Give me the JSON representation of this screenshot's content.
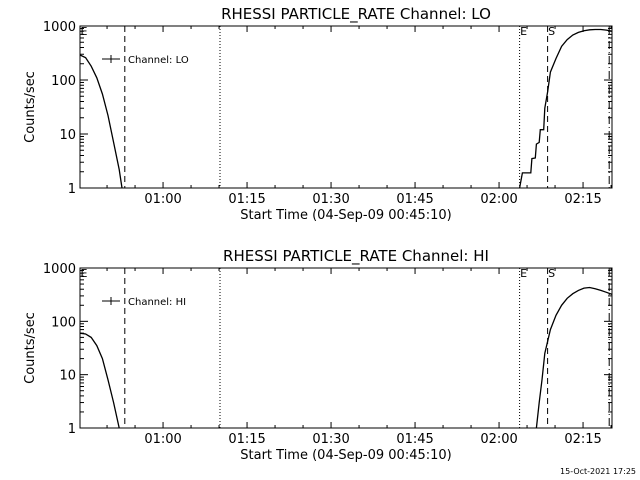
{
  "footer_timestamp": "15-Oct-2021 17:25",
  "chart_data": [
    {
      "type": "line",
      "title": "RHESSI PARTICLE_RATE Channel: LO",
      "xlabel": "Start Time (04-Sep-09 00:45:10)",
      "ylabel": "Counts/sec",
      "y_scale": "log",
      "ylim": [
        1,
        1000
      ],
      "x_unit": "minutes since 00:45:10",
      "xlim": [
        0,
        95
      ],
      "x_ticks": [
        {
          "label": "01:00",
          "value": 14.83
        },
        {
          "label": "01:15",
          "value": 29.83
        },
        {
          "label": "01:30",
          "value": 44.83
        },
        {
          "label": "01:45",
          "value": 59.83
        },
        {
          "label": "02:00",
          "value": 74.83
        },
        {
          "label": "02:15",
          "value": 89.83
        }
      ],
      "y_ticks": [
        {
          "label": "1",
          "value": 1
        },
        {
          "label": "10",
          "value": 10
        },
        {
          "label": "100",
          "value": 100
        },
        {
          "label": "1000",
          "value": 1000
        }
      ],
      "legend": {
        "label": "Channel: LO",
        "position": "top-left"
      },
      "series": [
        {
          "name": "Channel: LO",
          "segments": [
            [
              [
                0,
                290
              ],
              [
                1,
                260
              ],
              [
                2,
                180
              ],
              [
                3,
                110
              ],
              [
                4,
                55
              ],
              [
                5,
                22
              ],
              [
                6,
                7
              ],
              [
                7,
                2.2
              ],
              [
                7.5,
                1
              ]
            ],
            [
              [
                78.5,
                1
              ],
              [
                79,
                1.9
              ],
              [
                80.5,
                1.9
              ],
              [
                80.7,
                3.5
              ],
              [
                81.3,
                3.6
              ],
              [
                81.5,
                6.5
              ],
              [
                82,
                7
              ],
              [
                82.2,
                12
              ],
              [
                82.8,
                12
              ],
              [
                83,
                30
              ],
              [
                83.5,
                60
              ],
              [
                84,
                140
              ],
              [
                85,
                250
              ],
              [
                86,
                420
              ],
              [
                87,
                560
              ],
              [
                88,
                680
              ],
              [
                89,
                760
              ],
              [
                90,
                820
              ],
              [
                91,
                850
              ],
              [
                92,
                860
              ],
              [
                93,
                860
              ],
              [
                94,
                840
              ],
              [
                95,
                800
              ]
            ]
          ]
        }
      ],
      "vertical_markers": [
        {
          "label": "E",
          "x": 0,
          "style": "solid"
        },
        {
          "label": "",
          "x": 8,
          "style": "dashed"
        },
        {
          "label": "",
          "x": 25,
          "style": "dotted"
        },
        {
          "label": "E",
          "x": 78.5,
          "style": "dotted"
        },
        {
          "label": "S",
          "x": 83.5,
          "style": "dashed"
        },
        {
          "label": "",
          "x": 94.5,
          "style": "dashdot"
        }
      ]
    },
    {
      "type": "line",
      "title": "RHESSI PARTICLE_RATE Channel: HI",
      "xlabel": "Start Time (04-Sep-09 00:45:10)",
      "ylabel": "Counts/sec",
      "y_scale": "log",
      "ylim": [
        1,
        1000
      ],
      "x_unit": "minutes since 00:45:10",
      "xlim": [
        0,
        95
      ],
      "x_ticks": [
        {
          "label": "01:00",
          "value": 14.83
        },
        {
          "label": "01:15",
          "value": 29.83
        },
        {
          "label": "01:30",
          "value": 44.83
        },
        {
          "label": "01:45",
          "value": 59.83
        },
        {
          "label": "02:00",
          "value": 74.83
        },
        {
          "label": "02:15",
          "value": 89.83
        }
      ],
      "y_ticks": [
        {
          "label": "1",
          "value": 1
        },
        {
          "label": "10",
          "value": 10
        },
        {
          "label": "100",
          "value": 100
        },
        {
          "label": "1000",
          "value": 1000
        }
      ],
      "legend": {
        "label": "Channel: HI",
        "position": "top-left"
      },
      "series": [
        {
          "name": "Channel: HI",
          "segments": [
            [
              [
                0,
                60
              ],
              [
                1,
                58
              ],
              [
                2,
                50
              ],
              [
                3,
                35
              ],
              [
                4,
                20
              ],
              [
                5,
                8
              ],
              [
                6,
                3
              ],
              [
                7,
                1
              ]
            ],
            [
              [
                81.5,
                1
              ],
              [
                82,
                3
              ],
              [
                82.5,
                8
              ],
              [
                83,
                25
              ],
              [
                84,
                70
              ],
              [
                85,
                130
              ],
              [
                86,
                200
              ],
              [
                87,
                270
              ],
              [
                88,
                330
              ],
              [
                89,
                380
              ],
              [
                90,
                420
              ],
              [
                91,
                430
              ],
              [
                92,
                410
              ],
              [
                93,
                380
              ],
              [
                94,
                350
              ],
              [
                95,
                320
              ]
            ]
          ]
        }
      ],
      "vertical_markers": [
        {
          "label": "E",
          "x": 0,
          "style": "solid"
        },
        {
          "label": "",
          "x": 8,
          "style": "dashed"
        },
        {
          "label": "",
          "x": 25,
          "style": "dotted"
        },
        {
          "label": "E",
          "x": 78.5,
          "style": "dotted"
        },
        {
          "label": "S",
          "x": 83.5,
          "style": "dashed"
        },
        {
          "label": "",
          "x": 94.5,
          "style": "dashdot"
        }
      ]
    }
  ]
}
